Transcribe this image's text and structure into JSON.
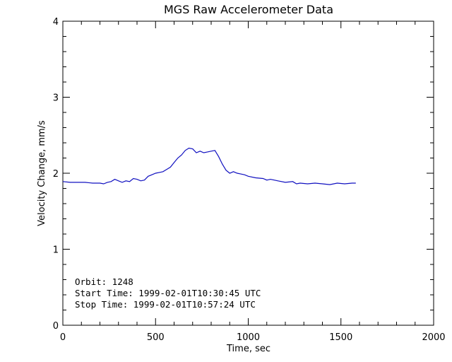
{
  "chart_data": {
    "type": "line",
    "title": "MGS Raw Accelerometer Data",
    "xlabel": "Time, sec",
    "ylabel": "Velocity Change, mm/s",
    "xlim": [
      0,
      2000
    ],
    "ylim": [
      0,
      4
    ],
    "x_ticks": [
      "0",
      "500",
      "1000",
      "1500",
      "2000"
    ],
    "y_ticks": [
      "0",
      "1",
      "2",
      "3",
      "4"
    ],
    "grid": false,
    "line_color": "#1010c0",
    "series": [
      {
        "x": [
          0,
          40,
          80,
          120,
          160,
          200,
          220,
          240,
          260,
          280,
          300,
          320,
          340,
          360,
          380,
          400,
          420,
          440,
          460,
          480,
          500,
          520,
          540,
          560,
          580,
          600,
          620,
          640,
          660,
          680,
          700,
          720,
          740,
          760,
          780,
          800,
          820,
          840,
          860,
          880,
          900,
          920,
          940,
          960,
          980,
          1000,
          1040,
          1080,
          1100,
          1120,
          1160,
          1200,
          1240,
          1260,
          1280,
          1320,
          1360,
          1400,
          1440,
          1480,
          1520,
          1560,
          1580
        ],
        "y": [
          1.89,
          1.88,
          1.88,
          1.88,
          1.87,
          1.87,
          1.86,
          1.88,
          1.89,
          1.92,
          1.9,
          1.88,
          1.9,
          1.89,
          1.93,
          1.92,
          1.9,
          1.91,
          1.96,
          1.98,
          2.0,
          2.01,
          2.02,
          2.05,
          2.08,
          2.14,
          2.2,
          2.24,
          2.3,
          2.33,
          2.32,
          2.27,
          2.29,
          2.27,
          2.28,
          2.29,
          2.3,
          2.22,
          2.12,
          2.04,
          2.0,
          2.02,
          2.0,
          1.99,
          1.98,
          1.96,
          1.94,
          1.93,
          1.91,
          1.92,
          1.9,
          1.88,
          1.89,
          1.86,
          1.87,
          1.86,
          1.87,
          1.86,
          1.85,
          1.87,
          1.86,
          1.87,
          1.87
        ]
      }
    ],
    "annotations": [
      "Orbit:      1248",
      "Start Time: 1999-02-01T10:30:45 UTC",
      "Stop Time: 1999-02-01T10:57:24 UTC"
    ]
  }
}
